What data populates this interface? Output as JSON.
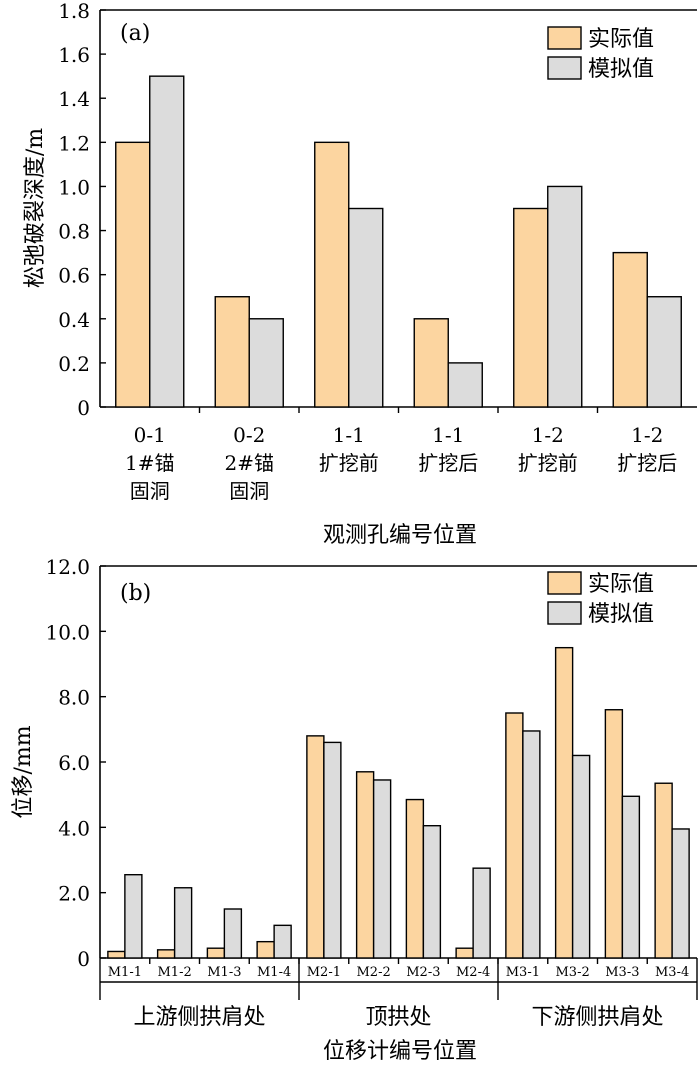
{
  "colors": {
    "actual": "#fcd5a0",
    "simulated": "#dcdcdc"
  },
  "chart_data": [
    {
      "type": "bar",
      "panel_label": "(a)",
      "ylabel": "松弛破裂深度/m",
      "xlabel": "观测孔编号位置",
      "ylim": [
        0,
        1.8
      ],
      "yticks": [
        "0",
        "0.2",
        "0.4",
        "0.6",
        "0.8",
        "1.0",
        "1.2",
        "1.4",
        "1.6",
        "1.8"
      ],
      "categories": [
        [
          "0-1",
          "1#锚",
          "固洞"
        ],
        [
          "0-2",
          "2#锚",
          "固洞"
        ],
        [
          "1-1",
          "扩挖前"
        ],
        [
          "1-1",
          "扩挖后"
        ],
        [
          "1-2",
          "扩挖前"
        ],
        [
          "1-2",
          "扩挖后"
        ]
      ],
      "series": [
        {
          "name": "实际值",
          "values": [
            1.2,
            0.5,
            1.2,
            0.4,
            0.9,
            0.7
          ]
        },
        {
          "name": "模拟值",
          "values": [
            1.5,
            0.4,
            0.9,
            0.2,
            1.0,
            0.5
          ]
        }
      ],
      "legend": "top-right",
      "grid": false
    },
    {
      "type": "bar",
      "panel_label": "(b)",
      "ylabel": "位移/mm",
      "xlabel": "位移计编号位置",
      "ylim": [
        0,
        12
      ],
      "yticks": [
        "0",
        "2.0",
        "4.0",
        "6.0",
        "8.0",
        "10.0",
        "12.0"
      ],
      "categories": [
        "M1-1",
        "M1-2",
        "M1-3",
        "M1-4",
        "M2-1",
        "M2-2",
        "M2-3",
        "M2-4",
        "M3-1",
        "M3-2",
        "M3-3",
        "M3-4"
      ],
      "groups": [
        "上游侧拱肩处",
        "顶拱处",
        "下游侧拱肩处"
      ],
      "series": [
        {
          "name": "实际值",
          "values": [
            0.2,
            0.25,
            0.3,
            0.5,
            6.8,
            5.7,
            4.85,
            0.3,
            7.5,
            9.5,
            7.6,
            5.35
          ]
        },
        {
          "name": "模拟值",
          "values": [
            2.55,
            2.15,
            1.5,
            1.0,
            6.6,
            5.45,
            4.05,
            2.75,
            6.95,
            6.2,
            4.95,
            3.95
          ]
        }
      ],
      "legend": "top-right",
      "grid": false
    }
  ]
}
